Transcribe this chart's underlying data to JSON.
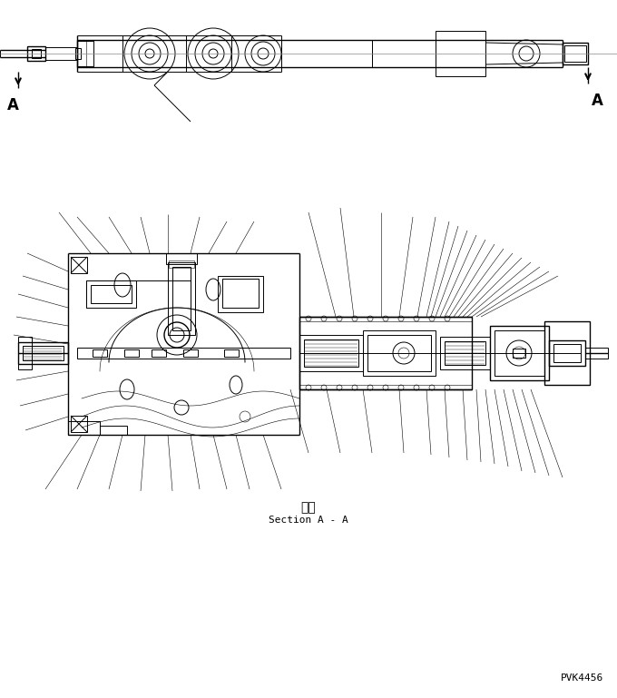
{
  "background_color": "#ffffff",
  "line_color": "#000000",
  "text_color": "#000000",
  "section_label_jp": "断面",
  "section_label_en": "Section A - A",
  "part_number": "PVK4456",
  "label_A": "A",
  "fig_width": 6.8,
  "fig_height": 7.69,
  "dpi": 100
}
